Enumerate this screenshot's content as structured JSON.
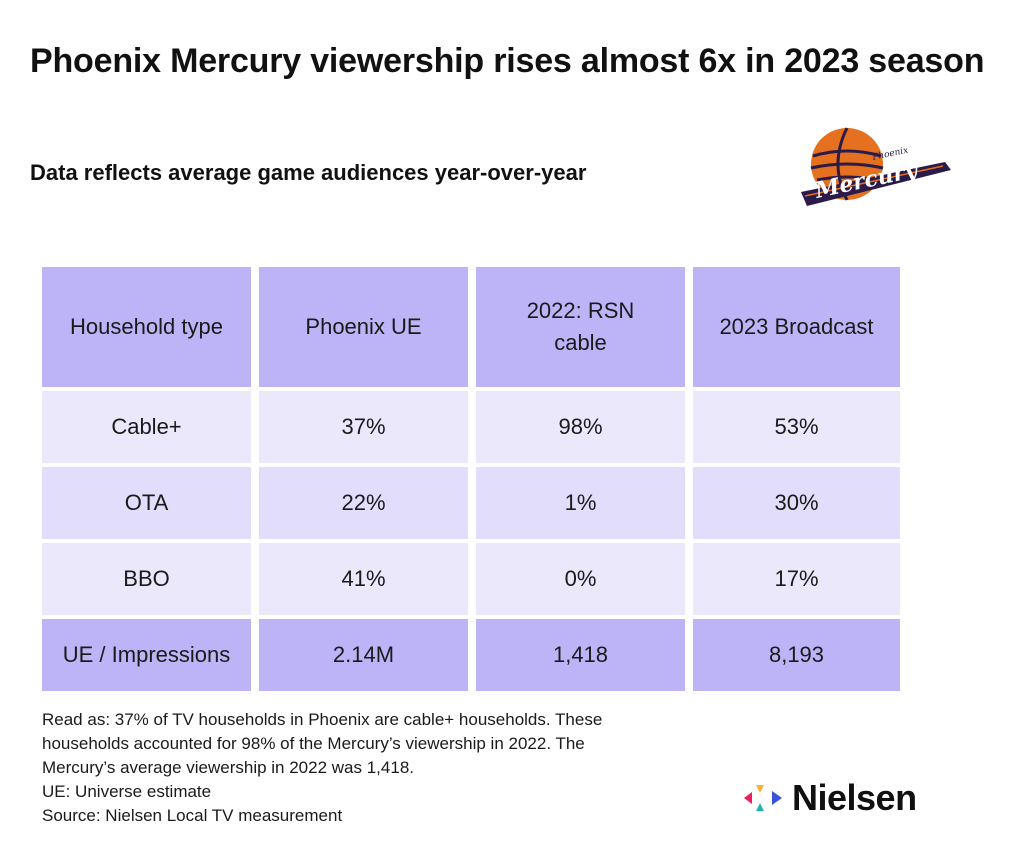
{
  "title": "Phoenix Mercury viewership rises almost 6x in 2023 season",
  "subtitle": "Data reflects average game audiences year-over-year",
  "logos": {
    "team_logo_text": "Phoenix Mercury",
    "brand_name": "Nielsen"
  },
  "colors": {
    "header_bg": "#bdb4f8",
    "row_light": "#ebe8fc",
    "row_mid": "#e2ddfb",
    "total_bg": "#bdb4f8",
    "mercury_orange": "#e5701f",
    "mercury_purple": "#2b1b48"
  },
  "chart_data": {
    "type": "table",
    "columns": [
      "Household type",
      "Phoenix UE",
      "2022: RSN cable",
      "2023 Broadcast"
    ],
    "rows": [
      [
        "Cable+",
        "37%",
        "98%",
        "53%"
      ],
      [
        "OTA",
        "22%",
        "1%",
        "30%"
      ],
      [
        "BBO",
        "41%",
        "0%",
        "17%"
      ],
      [
        "UE / Impressions",
        "2.14M",
        "1,418",
        "8,193"
      ]
    ]
  },
  "notes": [
    "Read as: 37% of TV households in Phoenix are cable+ households. These",
    "households accounted for 98% of the Mercury’s viewership in 2022. The",
    "Mercury’s average viewership in 2022 was 1,418.",
    "UE: Universe estimate",
    "Source: Nielsen Local TV measurement"
  ]
}
